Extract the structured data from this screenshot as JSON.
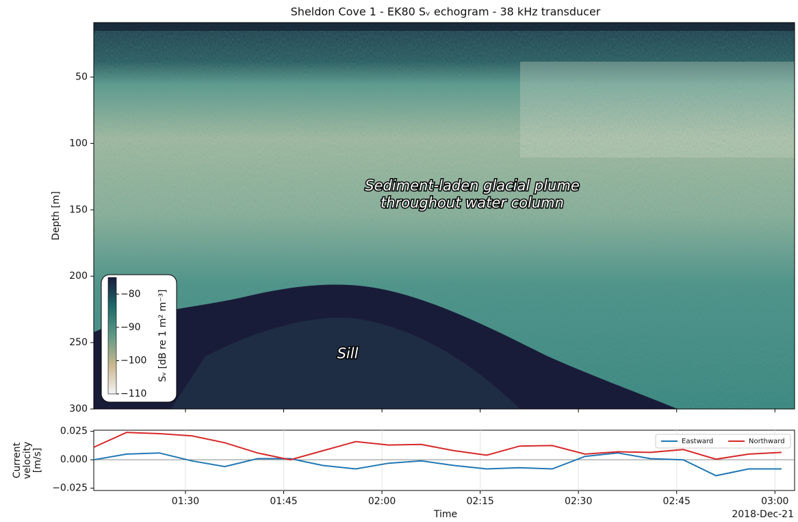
{
  "chart_data": [
    {
      "type": "heatmap",
      "title": "Sheldon Cove 1 - EK80 Sᵥ echogram - 38 kHz transducer",
      "ylabel": "Depth [m]",
      "ylim": [
        300,
        9
      ],
      "yticks": [
        50,
        100,
        150,
        200,
        250,
        300
      ],
      "colorbar": {
        "label": "Sᵥ [dB re 1 m² m⁻³]",
        "clim": [
          -110,
          -75
        ],
        "ticks": [
          {
            "value": -80,
            "label": "−80"
          },
          {
            "value": -90,
            "label": "−90"
          },
          {
            "value": -100,
            "label": "−100"
          },
          {
            "value": -110,
            "label": "−110"
          }
        ]
      },
      "annotations": [
        "Sediment-laden glacial plume",
        "throughout water column",
        "Sill"
      ]
    },
    {
      "type": "line",
      "xlabel": "Time",
      "x_offset_label": "2018-Dec-21",
      "ylabel": [
        "Current",
        "velocity",
        "[m/s]"
      ],
      "x": [
        "01:16",
        "01:21",
        "01:26",
        "01:31",
        "01:36",
        "01:41",
        "01:46",
        "01:51",
        "01:56",
        "02:01",
        "02:06",
        "02:11",
        "02:16",
        "02:21",
        "02:26",
        "02:31",
        "02:36",
        "02:41",
        "02:46",
        "02:51",
        "02:56",
        "03:01"
      ],
      "xlim": [
        "01:16",
        "03:03"
      ],
      "xticks": [
        "01:30",
        "01:45",
        "02:00",
        "02:15",
        "02:30",
        "02:45",
        "03:00"
      ],
      "ylim": [
        -0.027,
        0.026
      ],
      "yticks": [
        {
          "value": -0.025,
          "label": "−0.025"
        },
        {
          "value": 0,
          "label": "0.000"
        },
        {
          "value": 0.025,
          "label": "0.025"
        }
      ],
      "grid": true,
      "legend": "upper right",
      "series": [
        {
          "name": "Eastward",
          "color": "#1f77b4",
          "values": [
            0.0,
            0.005,
            0.006,
            -0.001,
            -0.006,
            0.001,
            0.001,
            -0.005,
            -0.008,
            -0.003,
            -0.001,
            -0.005,
            -0.008,
            -0.007,
            -0.008,
            0.003,
            0.006,
            0.001,
            0.0,
            -0.014,
            -0.008,
            -0.008
          ]
        },
        {
          "name": "Northward",
          "color": "#d62728",
          "values": [
            0.011,
            0.024,
            0.023,
            0.021,
            0.015,
            0.006,
            0.0,
            0.008,
            0.016,
            0.013,
            0.0135,
            0.008,
            0.004,
            0.012,
            0.0125,
            0.005,
            0.007,
            0.0065,
            0.009,
            0.0005,
            0.005,
            0.0065
          ]
        }
      ]
    }
  ]
}
